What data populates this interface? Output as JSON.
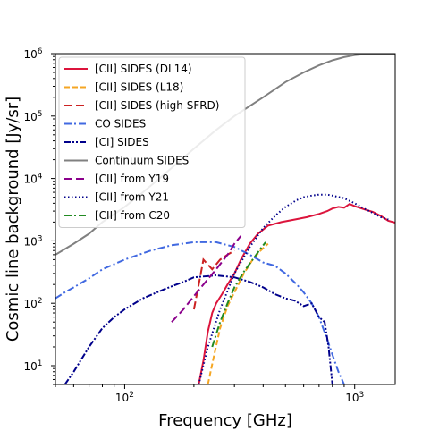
{
  "chart_data": {
    "type": "line",
    "title": "",
    "xlabel": "Frequency [GHz]",
    "ylabel": "Cosmic line background [Jy/sr]",
    "xscale": "log",
    "yscale": "log",
    "xlim": [
      50,
      1500
    ],
    "ylim": [
      5,
      1000000
    ],
    "x_ticks": [
      {
        "value": 100,
        "base": "10",
        "exp": "2"
      },
      {
        "value": 1000,
        "base": "10",
        "exp": "3"
      }
    ],
    "y_ticks": [
      {
        "value": 10,
        "base": "10",
        "exp": "1"
      },
      {
        "value": 100,
        "base": "10",
        "exp": "2"
      },
      {
        "value": 1000,
        "base": "10",
        "exp": "3"
      },
      {
        "value": 10000,
        "base": "10",
        "exp": "4"
      },
      {
        "value": 100000,
        "base": "10",
        "exp": "5"
      },
      {
        "value": 1000000,
        "base": "10",
        "exp": "6"
      }
    ],
    "grid": false,
    "legend_position": "top-left",
    "series": [
      {
        "name": "[CII] SIDES (DL14)",
        "color": "#dc143c",
        "dash": "solid",
        "x": [
          210,
          220,
          230,
          240,
          250,
          265,
          280,
          300,
          320,
          350,
          380,
          420,
          480,
          550,
          620,
          700,
          760,
          800,
          850,
          900,
          950,
          1000,
          1100,
          1200,
          1300,
          1400,
          1500
        ],
        "y": [
          5,
          12,
          35,
          70,
          100,
          140,
          200,
          300,
          500,
          900,
          1300,
          1750,
          2000,
          2200,
          2400,
          2700,
          3000,
          3300,
          3500,
          3400,
          3900,
          3600,
          3200,
          2900,
          2500,
          2100,
          1950
        ]
      },
      {
        "name": "[CII] SIDES (L18)",
        "color": "#f5a623",
        "dash": "dashed",
        "x": [
          230,
          245,
          260,
          280,
          300,
          330,
          360,
          390,
          420
        ],
        "y": [
          5,
          15,
          40,
          90,
          150,
          300,
          500,
          700,
          900
        ]
      },
      {
        "name": "[CII] SIDES (high SFRD)",
        "color": "#cc2222",
        "dash": "longdash",
        "x": [
          200,
          210,
          220,
          240,
          260,
          280,
          300
        ],
        "y": [
          80,
          200,
          500,
          350,
          500,
          600,
          700
        ]
      },
      {
        "name": "CO SIDES",
        "color": "#4169e1",
        "dash": "dashdot",
        "x": [
          50,
          55,
          60,
          70,
          80,
          100,
          130,
          160,
          200,
          250,
          300,
          350,
          400,
          450,
          500,
          560,
          600,
          650,
          700,
          750,
          800,
          850,
          900
        ],
        "y": [
          120,
          150,
          180,
          250,
          350,
          500,
          700,
          850,
          950,
          950,
          800,
          600,
          450,
          400,
          300,
          200,
          150,
          100,
          60,
          30,
          15,
          8,
          5
        ]
      },
      {
        "name": "[CI] SIDES",
        "color": "#00008b",
        "dash": "dashdotdot",
        "x": [
          55,
          60,
          70,
          80,
          90,
          100,
          120,
          150,
          180,
          200,
          250,
          300,
          350,
          400,
          450,
          500,
          550,
          600,
          650,
          700,
          740,
          770,
          800
        ],
        "y": [
          5,
          8,
          20,
          40,
          60,
          80,
          120,
          170,
          220,
          260,
          280,
          260,
          220,
          180,
          140,
          120,
          110,
          90,
          100,
          60,
          50,
          20,
          5
        ]
      },
      {
        "name": "Continuum SIDES",
        "color": "#808080",
        "dash": "solid",
        "x": [
          50,
          60,
          70,
          80,
          100,
          120,
          150,
          200,
          250,
          300,
          400,
          500,
          600,
          700,
          800,
          900,
          1000,
          1100,
          1200,
          1300,
          1500
        ],
        "y": [
          600,
          900,
          1300,
          2000,
          3500,
          6000,
          12000,
          30000,
          60000,
          100000,
          200000,
          350000,
          500000,
          650000,
          780000,
          880000,
          950000,
          980000,
          1000000,
          1000000,
          1000000
        ]
      },
      {
        "name": "[CII] from Y19",
        "color": "#8b008b",
        "dash": "longdash",
        "x": [
          160,
          180,
          200,
          220,
          250,
          280,
          300,
          320
        ],
        "y": [
          50,
          80,
          130,
          200,
          350,
          600,
          900,
          1200
        ]
      },
      {
        "name": "[CII] from Y21",
        "color": "#00008b",
        "dash": "dotted",
        "x": [
          210,
          230,
          260,
          300,
          350,
          400,
          450,
          500,
          560,
          600,
          650,
          700,
          760,
          800,
          900,
          1000,
          1100,
          1200,
          1300,
          1400
        ],
        "y": [
          5,
          20,
          80,
          300,
          800,
          1600,
          2500,
          3500,
          4500,
          5000,
          5300,
          5500,
          5500,
          5300,
          4800,
          4000,
          3300,
          2800,
          2400,
          2200
        ]
      },
      {
        "name": "[CII] from C20",
        "color": "#228b22",
        "dash": "dashdot",
        "x": [
          240,
          260,
          280,
          300,
          330,
          360,
          390,
          410
        ],
        "y": [
          20,
          50,
          100,
          180,
          320,
          500,
          750,
          950
        ]
      }
    ]
  }
}
